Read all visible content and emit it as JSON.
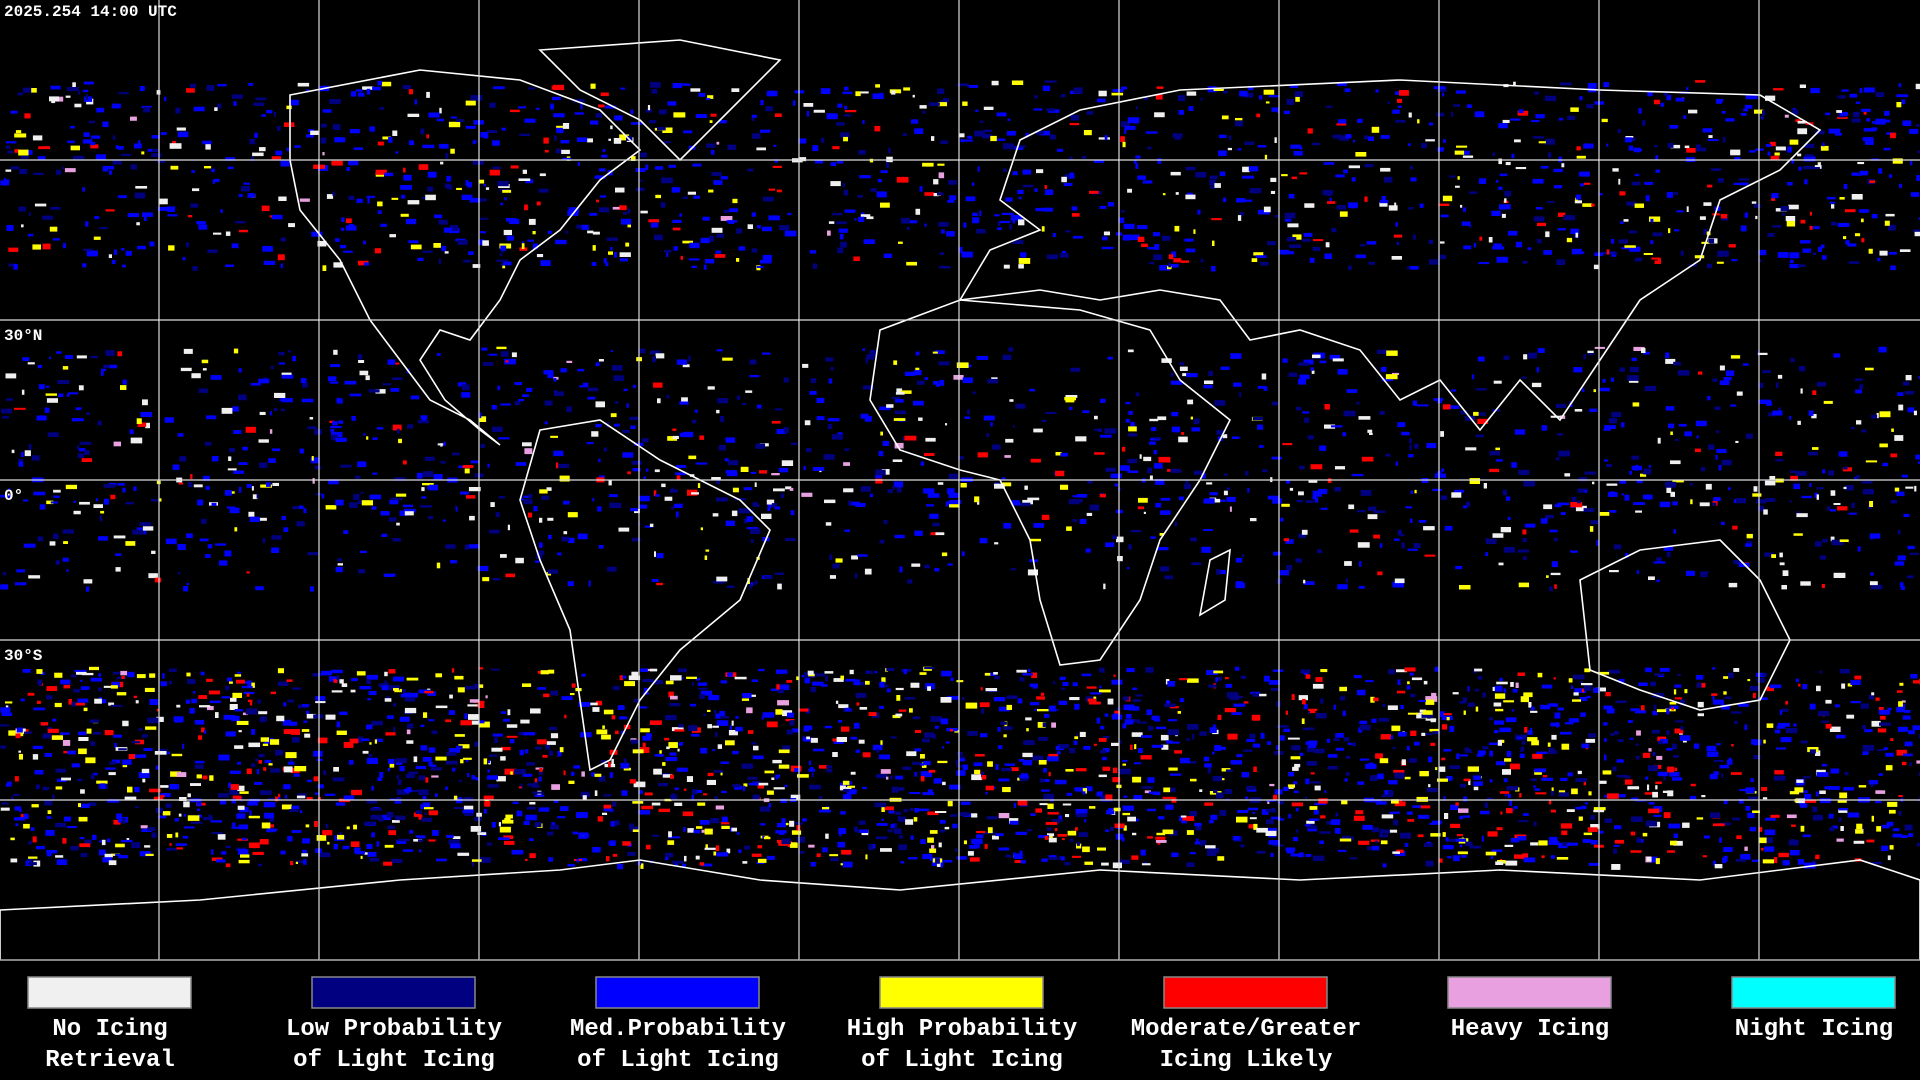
{
  "map": {
    "timestamp": "2025.254 14:00 UTC",
    "lat_labels": [
      {
        "value": 30,
        "label": "30°N"
      },
      {
        "value": 0,
        "label": "0°"
      },
      {
        "value": -30,
        "label": "30°S"
      }
    ],
    "legend": [
      {
        "color": "#f0f0f0",
        "lines": [
          "No Icing",
          "Retrieval"
        ]
      },
      {
        "color": "#000080",
        "lines": [
          "Low Probability",
          "of Light Icing"
        ]
      },
      {
        "color": "#0000ff",
        "lines": [
          "Med.Probability",
          "of Light Icing"
        ]
      },
      {
        "color": "#ffff00",
        "lines": [
          "High Probability",
          "of Light Icing"
        ]
      },
      {
        "color": "#ff0000",
        "lines": [
          "Moderate/Greater",
          "Icing Likely"
        ]
      },
      {
        "color": "#e8a0e0",
        "lines": [
          "Heavy Icing"
        ]
      },
      {
        "color": "#00ffff",
        "lines": [
          "Night Icing"
        ]
      }
    ]
  }
}
